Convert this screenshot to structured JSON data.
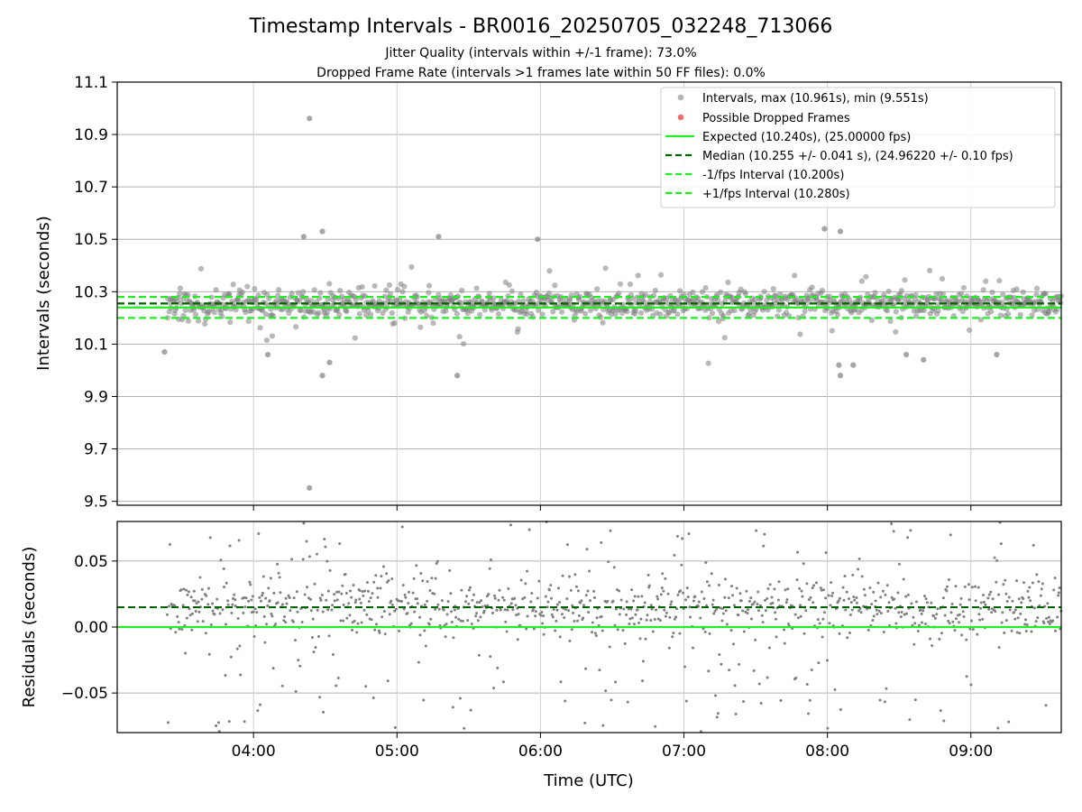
{
  "figure": {
    "title": "Timestamp Intervals - BR0016_20250705_032248_713066",
    "subtitle_1": "Jitter Quality (intervals within +/-1 frame): 73.0%",
    "subtitle_2": "Dropped Frame Rate (intervals >1 frames late within 50 FF files): 0.0%"
  },
  "chart_data": [
    {
      "type": "scatter",
      "panel": "top",
      "ylabel": "Intervals (seconds)",
      "xlabel": "",
      "x_unit": "hours UTC",
      "xlim": [
        3.05,
        9.63
      ],
      "ylim": [
        9.485,
        11.1
      ],
      "y_ticks": [
        "9.5",
        "9.7",
        "9.9",
        "10.1",
        "10.3",
        "10.5",
        "10.7",
        "10.9",
        "11.1"
      ],
      "y_tick_values": [
        9.5,
        9.7,
        9.9,
        10.1,
        10.3,
        10.5,
        10.7,
        10.9,
        11.1
      ],
      "x_ticks": [
        "04:00",
        "05:00",
        "06:00",
        "07:00",
        "08:00",
        "09:00"
      ],
      "x_tick_values": [
        4,
        5,
        6,
        7,
        8,
        9
      ],
      "grid": true,
      "legend_position": "top-right",
      "interval_series": {
        "name": "Intervals, max (10.961s), min (9.551s)",
        "color": "#808080",
        "x_start": 3.4,
        "x_end": 9.63,
        "count": 1100,
        "center": 10.255,
        "spread": 0.041,
        "outliers": [
          {
            "x": 4.39,
            "y": 10.961
          },
          {
            "x": 4.39,
            "y": 9.551
          },
          {
            "x": 4.35,
            "y": 10.51
          },
          {
            "x": 4.48,
            "y": 10.53
          },
          {
            "x": 5.29,
            "y": 10.51
          },
          {
            "x": 5.98,
            "y": 10.5
          },
          {
            "x": 7.98,
            "y": 10.54
          },
          {
            "x": 8.09,
            "y": 10.53
          },
          {
            "x": 3.38,
            "y": 10.07
          },
          {
            "x": 4.1,
            "y": 10.06
          },
          {
            "x": 4.48,
            "y": 9.98
          },
          {
            "x": 4.53,
            "y": 10.03
          },
          {
            "x": 5.42,
            "y": 9.98
          },
          {
            "x": 8.08,
            "y": 10.02
          },
          {
            "x": 8.09,
            "y": 9.98
          },
          {
            "x": 8.18,
            "y": 10.02
          },
          {
            "x": 8.55,
            "y": 10.06
          },
          {
            "x": 8.67,
            "y": 10.04
          },
          {
            "x": 9.18,
            "y": 10.06
          }
        ]
      },
      "dropped_series": {
        "name": "Possible Dropped Frames",
        "color": "#f07070",
        "points": []
      },
      "lines": [
        {
          "name": "Expected (10.240s), (25.00000 fps)",
          "value": 10.24,
          "color": "#22ee22",
          "style": "solid"
        },
        {
          "name": "Median (10.255 +/- 0.041 s), (24.96220 +/- 0.10 fps)",
          "value": 10.255,
          "color": "#006400",
          "style": "dashed"
        },
        {
          "name": "-1/fps Interval (10.200s)",
          "value": 10.2,
          "color": "#22ee22",
          "style": "dashed"
        },
        {
          "name": "+1/fps Interval (10.280s)",
          "value": 10.28,
          "color": "#22ee22",
          "style": "dashed"
        }
      ]
    },
    {
      "type": "scatter",
      "panel": "bottom",
      "ylabel": "Residuals (seconds)",
      "xlabel": "Time (UTC)",
      "x_unit": "hours UTC",
      "xlim": [
        3.05,
        9.63
      ],
      "ylim": [
        -0.08,
        0.08
      ],
      "y_ticks": [
        "−0.05",
        "0.00",
        "0.05"
      ],
      "y_tick_values": [
        -0.05,
        0.0,
        0.05
      ],
      "x_ticks": [
        "04:00",
        "05:00",
        "06:00",
        "07:00",
        "08:00",
        "09:00"
      ],
      "x_tick_values": [
        4,
        5,
        6,
        7,
        8,
        9
      ],
      "grid": true,
      "residual_series": {
        "color": "#808080",
        "x_start": 3.4,
        "x_end": 9.63,
        "count": 1100,
        "center": 0.015,
        "spread": 0.041
      },
      "lines": [
        {
          "value": 0.0,
          "color": "#22ee22",
          "style": "solid"
        },
        {
          "value": 0.015,
          "color": "#006400",
          "style": "dashed"
        }
      ]
    }
  ]
}
